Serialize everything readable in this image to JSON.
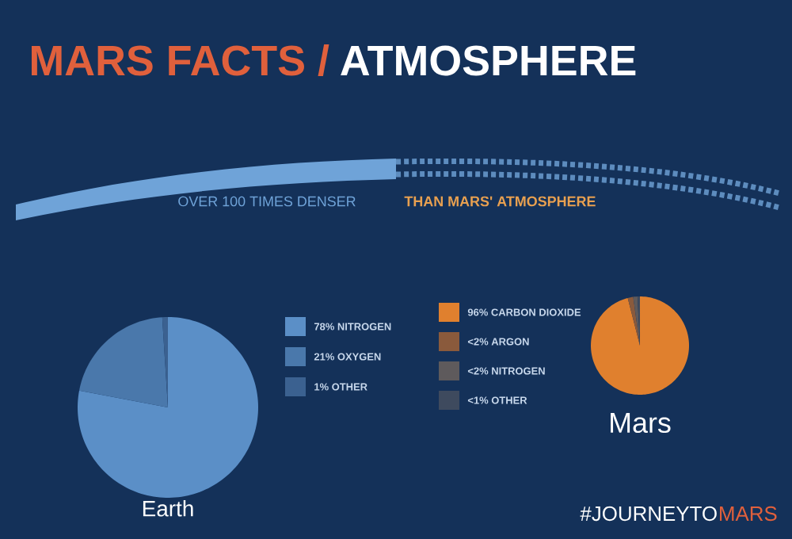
{
  "chart_data": [
    {
      "type": "pie",
      "title": "Earth",
      "categories": [
        "78% NITROGEN",
        "21% OXYGEN",
        "1% OTHER"
      ],
      "values": [
        78,
        21,
        1
      ],
      "colors": [
        "#5b8fc7",
        "#4a78ab",
        "#3b6190"
      ],
      "legend": "right",
      "annotations": [
        "MARS FACTS /",
        "ATMOSPHERE",
        "OVER 100 TIMES DENSER",
        "THAN MARS' ATMOSPHERE"
      ]
    },
    {
      "type": "pie",
      "title": "Mars",
      "categories": [
        "96% CARBON DIOXIDE",
        "<2% ARGON",
        "<2% NITROGEN",
        "<1% OTHER"
      ],
      "values": [
        96,
        1.8,
        1.4,
        0.8
      ],
      "colors": [
        "#e0802e",
        "#8a5a3c",
        "#5e5a5c",
        "#3e4a5e"
      ],
      "legend": "left",
      "annotations": [
        "#JOURNEYTO",
        "MARS"
      ]
    }
  ]
}
